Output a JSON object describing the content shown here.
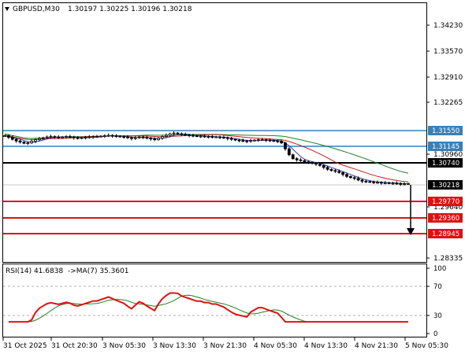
{
  "header": {
    "symbol_timeframe": "GBPUSD,M30",
    "ohlc": "1.30197 1.30225 1.30196 1.30218",
    "dropdown_icon": "triangle-down-icon"
  },
  "rsi_header": {
    "label": "RSI(14) 41.6838",
    "ma_label": "->MA(7) 35.3601"
  },
  "price_axis": {
    "ticks": [
      "1.34230",
      "1.33570",
      "1.32910",
      "1.32265",
      "1.30960",
      "1.29640",
      "1.28335"
    ]
  },
  "rsi_axis": {
    "ticks": [
      "100",
      "70",
      "30",
      "0"
    ]
  },
  "time_axis": {
    "labels": [
      "31 Oct 2025",
      "31 Oct 20:30",
      "3 Nov 05:30",
      "3 Nov 13:30",
      "3 Nov 21:30",
      "4 Nov 05:30",
      "4 Nov 13:30",
      "4 Nov 21:30",
      "5 Nov 05:30"
    ]
  },
  "levels": [
    {
      "value": "1.31550",
      "kind": "resistance",
      "color": "#3a7fb5"
    },
    {
      "value": "1.31145",
      "kind": "resistance",
      "color": "#3a7fb5"
    },
    {
      "value": "1.30740",
      "kind": "pivot",
      "color": "#000000"
    },
    {
      "value": "1.30218",
      "kind": "current",
      "color": "#c0c0c0"
    },
    {
      "value": "1.29770",
      "kind": "support",
      "color": "#e01010"
    },
    {
      "value": "1.29360",
      "kind": "support",
      "color": "#e01010"
    },
    {
      "value": "1.28945",
      "kind": "support",
      "color": "#e01010"
    }
  ],
  "colors": {
    "ma_fast": "#3a3aa8",
    "ma_medium": "#c02020",
    "ma_slow": "#208020",
    "rsi_line": "#e01010",
    "rsi_ma": "#208020",
    "candle": "#000000"
  },
  "chart_data": {
    "type": "candlestick",
    "symbol": "GBPUSD",
    "timeframe": "M30",
    "price_ticks": [
      1.3423,
      1.3357,
      1.3291,
      1.32265,
      1.3096,
      1.2964,
      1.28335
    ],
    "closes": [
      1.3143,
      1.3139,
      1.3134,
      1.313,
      1.3127,
      1.3124,
      1.3125,
      1.3129,
      1.3133,
      1.3136,
      1.3138,
      1.314,
      1.3141,
      1.314,
      1.3139,
      1.314,
      1.3141,
      1.314,
      1.3138,
      1.3137,
      1.3138,
      1.3139,
      1.314,
      1.3141,
      1.3141,
      1.3142,
      1.3143,
      1.3144,
      1.3143,
      1.3142,
      1.3141,
      1.314,
      1.3138,
      1.3136,
      1.3138,
      1.314,
      1.3139,
      1.3137,
      1.3135,
      1.3133,
      1.3137,
      1.3141,
      1.3144,
      1.3148,
      1.315,
      1.3148,
      1.3146,
      1.3145,
      1.3144,
      1.3143,
      1.3142,
      1.3142,
      1.3141,
      1.3141,
      1.314,
      1.314,
      1.3139,
      1.3138,
      1.3136,
      1.3134,
      1.3132,
      1.3131,
      1.313,
      1.3129,
      1.3131,
      1.3132,
      1.3133,
      1.3133,
      1.3132,
      1.3131,
      1.313,
      1.3129,
      1.3125,
      1.311,
      1.3095,
      1.3085,
      1.3082,
      1.308,
      1.3077,
      1.3075,
      1.3073,
      1.3071,
      1.3068,
      1.3063,
      1.3058,
      1.3055,
      1.3053,
      1.305,
      1.3045,
      1.304,
      1.3037,
      1.3035,
      1.3031,
      1.3028,
      1.3027,
      1.3026,
      1.3025,
      1.3025,
      1.3024,
      1.3024,
      1.3023,
      1.3023,
      1.3022,
      1.3021,
      1.3021,
      1.3022
    ]
  }
}
